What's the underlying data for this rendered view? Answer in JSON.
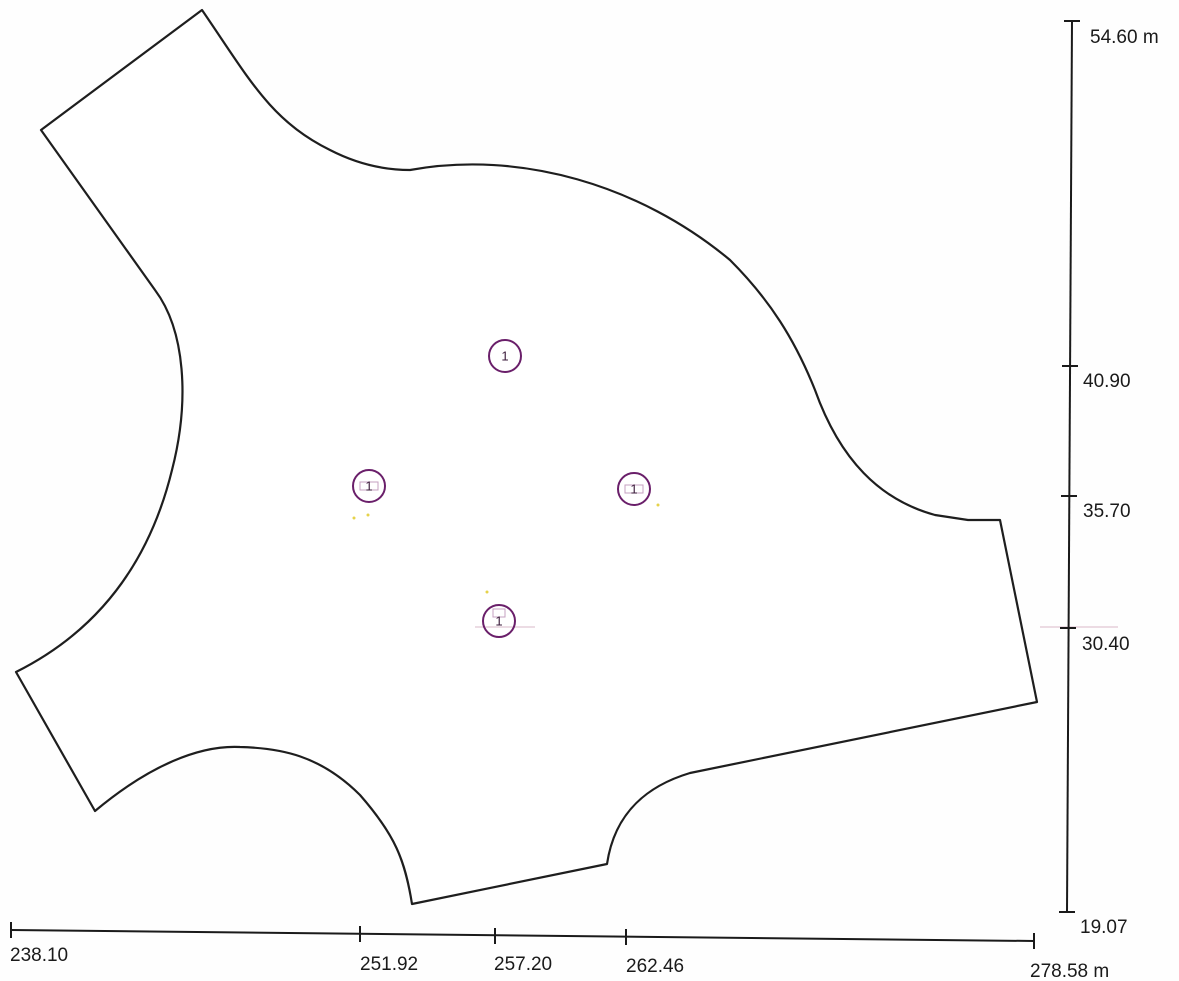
{
  "x_axis": {
    "unit": "m",
    "ticks": [
      {
        "value": 238.1,
        "label": "238.10"
      },
      {
        "value": 251.92,
        "label": "251.92"
      },
      {
        "value": 257.2,
        "label": "257.20"
      },
      {
        "value": 262.46,
        "label": "262.46"
      },
      {
        "value": 278.58,
        "label": "278.58 m"
      }
    ]
  },
  "y_axis": {
    "unit": "m",
    "ticks": [
      {
        "value": 54.6,
        "label": "54.60 m"
      },
      {
        "value": 40.9,
        "label": "40.90"
      },
      {
        "value": 35.7,
        "label": "35.70"
      },
      {
        "value": 30.4,
        "label": "30.40"
      },
      {
        "value": 19.07,
        "label": "19.07"
      }
    ]
  },
  "luminaires": [
    {
      "id": "1",
      "x": 257.2,
      "y": 40.9
    },
    {
      "id": "1",
      "x": 251.92,
      "y": 35.7
    },
    {
      "id": "1",
      "x": 262.46,
      "y": 35.7
    },
    {
      "id": "1",
      "x": 257.2,
      "y": 30.4
    }
  ],
  "colors": {
    "outline": "#1e1e1e",
    "luminaire": "#6a1f6a"
  }
}
